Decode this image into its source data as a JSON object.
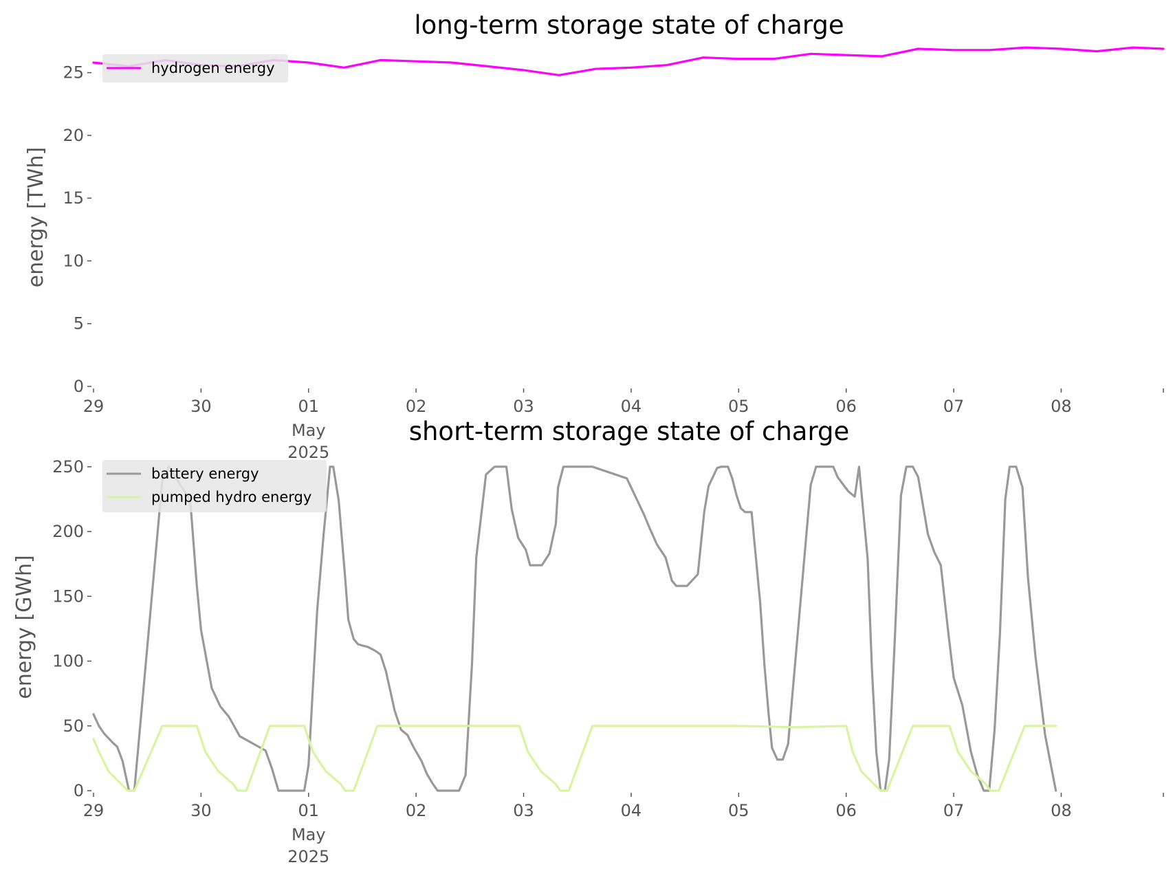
{
  "chart_data": [
    {
      "type": "line",
      "title": "long-term storage state of charge",
      "xlabel": "",
      "ylabel": "energy [TWh]",
      "ylim": [
        0,
        27.5
      ],
      "yticks": [
        0,
        5,
        10,
        15,
        20,
        25
      ],
      "x_tick_labels": [
        "29",
        "30",
        "01",
        "02",
        "03",
        "04",
        "05",
        "06",
        "07",
        "08"
      ],
      "x_tick_sublabels": [
        "May",
        "2025"
      ],
      "x_range_days": [
        "2025-04-29",
        "2025-05-08"
      ],
      "grid": false,
      "legend_position": "top-left",
      "series": [
        {
          "name": "hydrogen energy",
          "color": "#ff00ff",
          "x_days": [
            0,
            0.33,
            0.67,
            1.0,
            1.33,
            1.67,
            2.0,
            2.33,
            2.67,
            3.0,
            3.33,
            3.67,
            4.0,
            4.33,
            4.67,
            5.0,
            5.33,
            5.67,
            6.0,
            6.33,
            6.67,
            7.0,
            7.33,
            7.67,
            8.0,
            8.33,
            8.67,
            9.0,
            9.33,
            9.67,
            9.95
          ],
          "values": [
            25.8,
            25.5,
            26.0,
            25.6,
            25.5,
            26.0,
            25.8,
            25.4,
            26.0,
            25.9,
            25.8,
            25.5,
            25.2,
            24.8,
            25.3,
            25.4,
            25.6,
            26.2,
            26.1,
            26.1,
            26.5,
            26.4,
            26.3,
            26.9,
            26.8,
            26.8,
            27.0,
            26.9,
            26.7,
            27.0,
            26.9
          ]
        }
      ]
    },
    {
      "type": "line",
      "title": "short-term storage state of charge",
      "xlabel": "",
      "ylabel": "energy [GWh]",
      "ylim": [
        0,
        260
      ],
      "yticks": [
        0,
        50,
        100,
        150,
        200,
        250
      ],
      "x_tick_labels": [
        "29",
        "30",
        "01",
        "02",
        "03",
        "04",
        "05",
        "06",
        "07",
        "08"
      ],
      "x_tick_sublabels": [
        "May",
        "2025"
      ],
      "x_range_days": [
        "2025-04-29",
        "2025-05-08"
      ],
      "grid": false,
      "legend_position": "top-left",
      "series": [
        {
          "name": "battery energy",
          "color": "#999999",
          "x_days": [
            0,
            0.05,
            0.1,
            0.18,
            0.22,
            0.27,
            0.33,
            0.38,
            0.64,
            0.7,
            0.9,
            0.96,
            1.0,
            1.1,
            1.18,
            1.26,
            1.3,
            1.36,
            1.6,
            1.66,
            1.72,
            1.96,
            2.0,
            2.04,
            2.08,
            2.14,
            2.2,
            2.23,
            2.28,
            2.34,
            2.37,
            2.42,
            2.46,
            2.5,
            2.55,
            2.62,
            2.67,
            2.72,
            2.8,
            2.86,
            2.92,
            2.98,
            3.05,
            3.1,
            3.15,
            3.2,
            3.26,
            3.32,
            3.36,
            3.4,
            3.46,
            3.52,
            3.56,
            3.65,
            3.73,
            3.81,
            3.84,
            3.89,
            3.95,
            4.02,
            4.06,
            4.1,
            4.17,
            4.24,
            4.3,
            4.32,
            4.37,
            4.44,
            4.52,
            4.64,
            4.96,
            5.12,
            5.17,
            5.24,
            5.32,
            5.38,
            5.42,
            5.52,
            5.62,
            5.68,
            5.72,
            5.8,
            5.84,
            5.9,
            5.94,
            5.98,
            6.02,
            6.06,
            6.12,
            6.2,
            6.24,
            6.28,
            6.31,
            6.36,
            6.41,
            6.46,
            6.67,
            6.72,
            6.8,
            6.88,
            6.92,
            7.02,
            7.08,
            7.12,
            7.2,
            7.24,
            7.28,
            7.32,
            7.36,
            7.4,
            7.45,
            7.51,
            7.56,
            7.62,
            7.67,
            7.76,
            7.82,
            7.88,
            7.95,
            8.0,
            8.08,
            8.16,
            8.22,
            8.28,
            8.33,
            8.38,
            8.43,
            8.48,
            8.52,
            8.58,
            8.64,
            8.69,
            8.76,
            8.85,
            8.95
          ],
          "values": [
            59,
            50,
            44,
            37,
            34,
            23,
            0,
            0,
            240,
            250,
            224,
            159,
            124,
            79,
            65,
            57,
            51,
            42,
            31,
            17,
            0,
            0,
            20,
            79,
            139,
            198,
            250,
            250,
            224,
            165,
            132,
            117,
            113,
            112,
            111,
            108,
            105,
            92,
            62,
            47,
            43,
            33,
            23,
            13,
            6,
            0,
            0,
            0,
            0,
            0,
            12,
            98,
            180,
            244,
            250,
            250,
            250,
            217,
            195,
            186,
            174,
            174,
            174,
            183,
            206,
            234,
            250,
            250,
            250,
            250,
            241,
            213,
            203,
            190,
            180,
            162,
            158,
            158,
            167,
            215,
            235,
            249,
            250,
            250,
            241,
            228,
            218,
            215,
            215,
            145,
            97,
            58,
            33,
            24,
            24,
            36,
            236,
            250,
            250,
            250,
            242,
            231,
            227,
            250,
            179,
            93,
            30,
            0,
            0,
            24,
            112,
            228,
            250,
            250,
            242,
            198,
            184,
            174,
            122,
            87,
            66,
            30,
            12,
            0,
            0,
            47,
            121,
            225,
            250,
            250,
            234,
            165,
            104,
            43,
            0
          ]
        },
        {
          "name": "pumped hydro energy",
          "color": "#d7f5a0",
          "x_days": [
            0,
            0.05,
            0.14,
            0.26,
            0.32,
            0.38,
            0.64,
            0.96,
            1.04,
            1.16,
            1.3,
            1.34,
            1.42,
            1.64,
            1.96,
            2.04,
            2.16,
            2.3,
            2.34,
            2.42,
            2.64,
            3.96,
            4.04,
            4.16,
            4.3,
            4.34,
            4.42,
            4.64,
            6.0,
            6.52,
            7.0,
            7.06,
            7.14,
            7.26,
            7.32,
            7.38,
            7.62,
            7.96,
            8.04,
            8.16,
            8.3,
            8.34,
            8.42,
            8.66,
            8.95
          ],
          "values": [
            40,
            30,
            15,
            5,
            0,
            0,
            50,
            50,
            30,
            15,
            5,
            0,
            0,
            50,
            50,
            30,
            15,
            5,
            0,
            0,
            50,
            50,
            30,
            15,
            5,
            0,
            0,
            50,
            50,
            49,
            50,
            30,
            15,
            5,
            0,
            0,
            50,
            50,
            30,
            15,
            5,
            0,
            0,
            50,
            50
          ]
        }
      ]
    }
  ]
}
